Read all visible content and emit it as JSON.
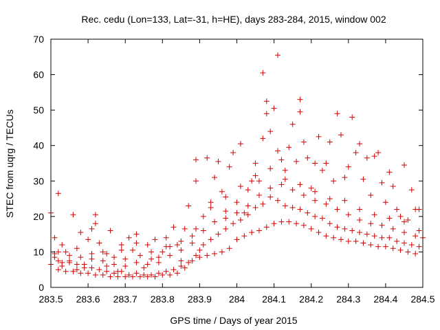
{
  "chart_data": {
    "type": "scatter",
    "title": "Rec. cedu (Lon=133, Lat=-31, h=HE), days 283-284, 2015, window 002",
    "xlabel": "GPS time / Days of year 2015",
    "ylabel": "STEC from uqrg / TECUs",
    "xlim": [
      283.5,
      284.5
    ],
    "ylim": [
      0,
      70
    ],
    "x_ticks": [
      283.5,
      283.6,
      283.7,
      283.8,
      283.9,
      284.0,
      284.1,
      284.2,
      284.3,
      284.4,
      284.5
    ],
    "x_tick_labels": [
      "283.5",
      "283.6",
      "283.7",
      "283.8",
      "283.9",
      "284",
      "284.1",
      "284.2",
      "284.3",
      "284.4",
      "284.5"
    ],
    "y_ticks": [
      0,
      10,
      20,
      30,
      40,
      50,
      60,
      70
    ],
    "y_tick_labels": [
      "0",
      "10",
      "20",
      "30",
      "40",
      "50",
      "60",
      "70"
    ],
    "marker": "+",
    "color": "#d40000",
    "grid": false,
    "series": [
      {
        "name": "STEC",
        "points": [
          [
            283.5,
            21.0
          ],
          [
            283.51,
            14.0
          ],
          [
            283.51,
            9.5
          ],
          [
            283.52,
            26.5
          ],
          [
            283.52,
            7.5
          ],
          [
            283.53,
            6.0
          ],
          [
            283.54,
            10.0
          ],
          [
            283.55,
            7.0
          ],
          [
            283.56,
            20.5
          ],
          [
            283.57,
            6.5
          ],
          [
            283.58,
            15.5
          ],
          [
            283.59,
            5.5
          ],
          [
            283.6,
            13.5
          ],
          [
            283.61,
            8.0
          ],
          [
            283.62,
            20.5
          ],
          [
            283.62,
            18.0
          ],
          [
            283.63,
            12.5
          ],
          [
            283.64,
            10.0
          ],
          [
            283.65,
            6.0
          ],
          [
            283.66,
            16.0
          ],
          [
            283.67,
            8.5
          ],
          [
            283.68,
            4.5
          ],
          [
            283.69,
            12.0
          ],
          [
            283.7,
            6.0
          ],
          [
            283.71,
            14.0
          ],
          [
            283.72,
            10.5
          ],
          [
            283.73,
            15.0
          ],
          [
            283.74,
            9.0
          ],
          [
            283.75,
            5.5
          ],
          [
            283.76,
            12.0
          ],
          [
            283.77,
            8.0
          ],
          [
            283.78,
            13.5
          ],
          [
            283.79,
            7.0
          ],
          [
            283.8,
            10.0
          ],
          [
            283.81,
            14.0
          ],
          [
            283.82,
            11.5
          ],
          [
            283.83,
            17.0
          ],
          [
            283.84,
            12.0
          ],
          [
            283.85,
            7.5
          ],
          [
            283.86,
            16.5
          ],
          [
            283.87,
            23.0
          ],
          [
            283.88,
            14.5
          ],
          [
            283.89,
            30.0
          ],
          [
            283.89,
            36.0
          ],
          [
            283.9,
            10.5
          ],
          [
            283.91,
            20.0
          ],
          [
            283.92,
            36.5
          ],
          [
            283.93,
            24.0
          ],
          [
            283.94,
            31.0
          ],
          [
            283.95,
            35.5
          ],
          [
            283.96,
            27.0
          ],
          [
            283.97,
            21.5
          ],
          [
            283.98,
            34.0
          ],
          [
            283.99,
            38.0
          ],
          [
            284.0,
            24.0
          ],
          [
            284.01,
            40.5
          ],
          [
            284.02,
            21.0
          ],
          [
            284.03,
            27.5
          ],
          [
            284.04,
            30.0
          ],
          [
            284.05,
            35.0
          ],
          [
            284.06,
            30.0
          ],
          [
            284.07,
            60.5
          ],
          [
            284.07,
            42.0
          ],
          [
            284.08,
            52.5
          ],
          [
            284.08,
            49.0
          ],
          [
            284.09,
            44.0
          ],
          [
            284.1,
            50.5
          ],
          [
            284.11,
            65.5
          ],
          [
            284.11,
            38.5
          ],
          [
            284.12,
            36.0
          ],
          [
            284.13,
            33.0
          ],
          [
            284.14,
            39.5
          ],
          [
            284.15,
            46.0
          ],
          [
            284.16,
            35.5
          ],
          [
            284.17,
            53.0
          ],
          [
            284.17,
            49.5
          ],
          [
            284.18,
            41.0
          ],
          [
            284.19,
            36.5
          ],
          [
            284.2,
            28.0
          ],
          [
            284.21,
            35.0
          ],
          [
            284.22,
            42.5
          ],
          [
            284.23,
            33.0
          ],
          [
            284.24,
            35.0
          ],
          [
            284.25,
            41.0
          ],
          [
            284.26,
            30.0
          ],
          [
            284.27,
            49.0
          ],
          [
            284.28,
            43.0
          ],
          [
            284.29,
            31.0
          ],
          [
            284.3,
            34.0
          ],
          [
            284.31,
            48.0
          ],
          [
            284.32,
            38.0
          ],
          [
            284.33,
            40.5
          ],
          [
            284.34,
            30.5
          ],
          [
            284.35,
            36.5
          ],
          [
            284.36,
            26.0
          ],
          [
            284.37,
            37.0
          ],
          [
            284.38,
            38.0
          ],
          [
            284.39,
            29.5
          ],
          [
            284.4,
            24.0
          ],
          [
            284.41,
            32.5
          ],
          [
            284.42,
            28.5
          ],
          [
            284.43,
            22.0
          ],
          [
            284.44,
            20.0
          ],
          [
            284.45,
            34.5
          ],
          [
            284.46,
            19.0
          ],
          [
            284.47,
            27.5
          ],
          [
            284.48,
            22.0
          ],
          [
            284.49,
            22.0
          ],
          [
            284.5,
            14.0
          ],
          [
            283.5,
            6.5
          ],
          [
            283.52,
            5.0
          ],
          [
            283.54,
            4.5
          ],
          [
            283.56,
            4.5
          ],
          [
            283.58,
            4.0
          ],
          [
            283.6,
            4.0
          ],
          [
            283.62,
            3.5
          ],
          [
            283.64,
            3.5
          ],
          [
            283.66,
            3.0
          ],
          [
            283.68,
            3.0
          ],
          [
            283.7,
            3.0
          ],
          [
            283.72,
            3.0
          ],
          [
            283.74,
            3.0
          ],
          [
            283.76,
            3.0
          ],
          [
            283.78,
            3.0
          ],
          [
            283.8,
            3.5
          ],
          [
            283.82,
            3.5
          ],
          [
            283.84,
            4.0
          ],
          [
            283.86,
            5.5
          ],
          [
            283.88,
            7.5
          ],
          [
            283.9,
            8.5
          ],
          [
            283.92,
            9.0
          ],
          [
            283.94,
            9.5
          ],
          [
            283.96,
            10.0
          ],
          [
            283.98,
            11.0
          ],
          [
            284.0,
            13.5
          ],
          [
            284.02,
            14.5
          ],
          [
            284.04,
            15.5
          ],
          [
            284.06,
            16.0
          ],
          [
            284.08,
            17.0
          ],
          [
            284.1,
            18.0
          ],
          [
            284.12,
            18.5
          ],
          [
            284.14,
            18.5
          ],
          [
            284.16,
            18.0
          ],
          [
            284.18,
            17.5
          ],
          [
            284.2,
            16.5
          ],
          [
            284.22,
            15.5
          ],
          [
            284.24,
            14.5
          ],
          [
            284.26,
            14.0
          ],
          [
            284.28,
            13.5
          ],
          [
            284.3,
            13.0
          ],
          [
            284.32,
            13.0
          ],
          [
            284.34,
            12.5
          ],
          [
            284.36,
            12.0
          ],
          [
            284.38,
            11.5
          ],
          [
            284.4,
            11.5
          ],
          [
            284.42,
            11.0
          ],
          [
            284.44,
            10.5
          ],
          [
            284.46,
            10.0
          ],
          [
            284.48,
            9.5
          ],
          [
            283.51,
            8.5
          ],
          [
            283.53,
            7.0
          ],
          [
            283.55,
            7.5
          ],
          [
            283.57,
            5.0
          ],
          [
            283.59,
            6.5
          ],
          [
            283.61,
            5.5
          ],
          [
            283.63,
            5.0
          ],
          [
            283.65,
            4.5
          ],
          [
            283.67,
            4.0
          ],
          [
            283.69,
            4.5
          ],
          [
            283.71,
            3.5
          ],
          [
            283.73,
            4.0
          ],
          [
            283.75,
            3.5
          ],
          [
            283.77,
            3.5
          ],
          [
            283.79,
            4.0
          ],
          [
            283.81,
            4.5
          ],
          [
            283.83,
            5.0
          ],
          [
            283.85,
            6.0
          ],
          [
            283.87,
            7.0
          ],
          [
            283.89,
            9.0
          ],
          [
            283.91,
            12.0
          ],
          [
            283.93,
            13.5
          ],
          [
            283.95,
            15.0
          ],
          [
            283.97,
            16.5
          ],
          [
            283.99,
            18.0
          ],
          [
            284.01,
            19.0
          ],
          [
            284.03,
            20.5
          ],
          [
            284.05,
            22.5
          ],
          [
            284.07,
            23.5
          ],
          [
            284.09,
            25.5
          ],
          [
            284.11,
            24.5
          ],
          [
            284.13,
            23.0
          ],
          [
            284.15,
            22.5
          ],
          [
            284.17,
            22.0
          ],
          [
            284.19,
            21.0
          ],
          [
            284.21,
            20.0
          ],
          [
            284.23,
            19.5
          ],
          [
            284.25,
            18.0
          ],
          [
            284.27,
            17.0
          ],
          [
            284.29,
            16.5
          ],
          [
            284.31,
            16.0
          ],
          [
            284.33,
            15.5
          ],
          [
            284.35,
            15.0
          ],
          [
            284.37,
            14.5
          ],
          [
            284.39,
            14.0
          ],
          [
            284.41,
            14.0
          ],
          [
            284.43,
            13.0
          ],
          [
            284.45,
            12.5
          ],
          [
            284.47,
            12.0
          ],
          [
            284.49,
            11.5
          ],
          [
            283.52,
            10.0
          ],
          [
            283.55,
            9.0
          ],
          [
            283.58,
            8.5
          ],
          [
            283.61,
            9.5
          ],
          [
            283.64,
            7.5
          ],
          [
            283.67,
            6.5
          ],
          [
            283.7,
            8.0
          ],
          [
            283.73,
            7.0
          ],
          [
            283.76,
            6.5
          ],
          [
            283.79,
            8.5
          ],
          [
            283.82,
            9.0
          ],
          [
            283.85,
            10.5
          ],
          [
            283.88,
            12.5
          ],
          [
            283.91,
            16.0
          ],
          [
            283.94,
            18.5
          ],
          [
            283.97,
            19.5
          ],
          [
            284.0,
            21.0
          ],
          [
            284.03,
            23.0
          ],
          [
            284.06,
            26.0
          ],
          [
            284.09,
            28.0
          ],
          [
            284.12,
            29.0
          ],
          [
            284.15,
            27.5
          ],
          [
            284.18,
            26.0
          ],
          [
            284.21,
            24.5
          ],
          [
            284.24,
            23.5
          ],
          [
            284.27,
            22.0
          ],
          [
            284.3,
            20.5
          ],
          [
            284.33,
            19.0
          ],
          [
            284.36,
            18.0
          ],
          [
            284.39,
            17.5
          ],
          [
            284.42,
            16.5
          ],
          [
            284.45,
            15.5
          ],
          [
            284.48,
            14.5
          ],
          [
            283.53,
            12.0
          ],
          [
            283.57,
            11.0
          ],
          [
            283.61,
            16.5
          ],
          [
            283.65,
            9.5
          ],
          [
            283.69,
            10.5
          ],
          [
            283.73,
            12.5
          ],
          [
            283.77,
            10.0
          ],
          [
            283.81,
            11.5
          ],
          [
            283.85,
            13.0
          ],
          [
            283.89,
            16.5
          ],
          [
            283.93,
            22.5
          ],
          [
            283.97,
            25.5
          ],
          [
            284.01,
            28.5
          ],
          [
            284.05,
            31.5
          ],
          [
            284.09,
            33.5
          ],
          [
            284.13,
            30.5
          ],
          [
            284.17,
            29.0
          ],
          [
            284.21,
            27.0
          ],
          [
            284.25,
            25.0
          ],
          [
            284.29,
            24.5
          ],
          [
            284.33,
            22.0
          ],
          [
            284.37,
            20.5
          ],
          [
            284.41,
            19.5
          ],
          [
            284.45,
            18.5
          ],
          [
            284.49,
            16.0
          ]
        ]
      }
    ]
  }
}
